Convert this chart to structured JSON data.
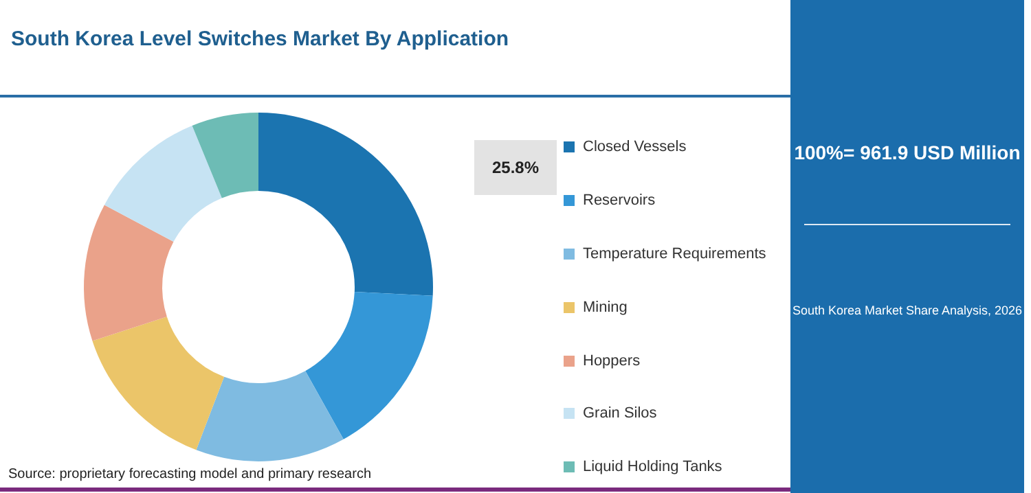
{
  "chart_data": {
    "type": "donut",
    "title": "South Korea Level Switches Market By Application",
    "categories": [
      "Closed Vessels",
      "Reservoirs",
      "Temperature Requirements",
      "Mining",
      "Hoppers",
      "Grain Silos",
      "Liquid Holding Tanks"
    ],
    "values": [
      25.8,
      16.1,
      13.9,
      14.2,
      12.8,
      11.0,
      6.2
    ],
    "colors": [
      "#1b74b0",
      "#3497d7",
      "#7fbbe1",
      "#ebc569",
      "#eaa28a",
      "#c6e3f3",
      "#6dbcb5"
    ],
    "value_labels": [
      "25.8%",
      null,
      null,
      null,
      null,
      null,
      null
    ],
    "legend": "right",
    "subtitle": "South Korea Market Share Analysis, 2026",
    "annotations": [
      "100%= 961.9 USD Million",
      "Source: proprietary forecasting model and primary research"
    ]
  }
}
